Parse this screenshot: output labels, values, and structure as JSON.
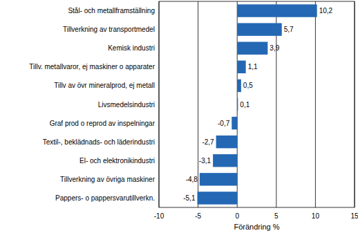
{
  "chart_data": {
    "type": "bar",
    "orientation": "horizontal",
    "x_label": "Förändring %",
    "categories": [
      "Stål- och metallframställning",
      "Tillverkning av transportmedel",
      "Kemisk industri",
      "Tillv. metallvaror, ej maskiner o apparater",
      "Tillv av övr mineralprod, ej metall",
      "Livsmedelsindustri",
      "Graf prod o reprod av inspelningar",
      "Textil-, beklädnads- och läderindustri",
      "El- och elektronikindustri",
      "Tillverkning av övriga maskiner",
      "Pappers- o pappersvarutillverkn."
    ],
    "values": [
      10.2,
      5.7,
      3.9,
      1.1,
      0.5,
      0.1,
      -0.7,
      -2.7,
      -3.1,
      -4.8,
      -5.1
    ],
    "value_labels": [
      "10,2",
      "5,7",
      "3,9",
      "1,1",
      "0,5",
      "0,1",
      "-0,7",
      "-2,7",
      "-3,1",
      "-4,8",
      "-5,1"
    ],
    "color": "#2468b4",
    "xlim": [
      -10,
      15
    ],
    "xticks": [
      -10,
      -5,
      0,
      5,
      10,
      15
    ],
    "grid": true,
    "data_labels": true
  }
}
